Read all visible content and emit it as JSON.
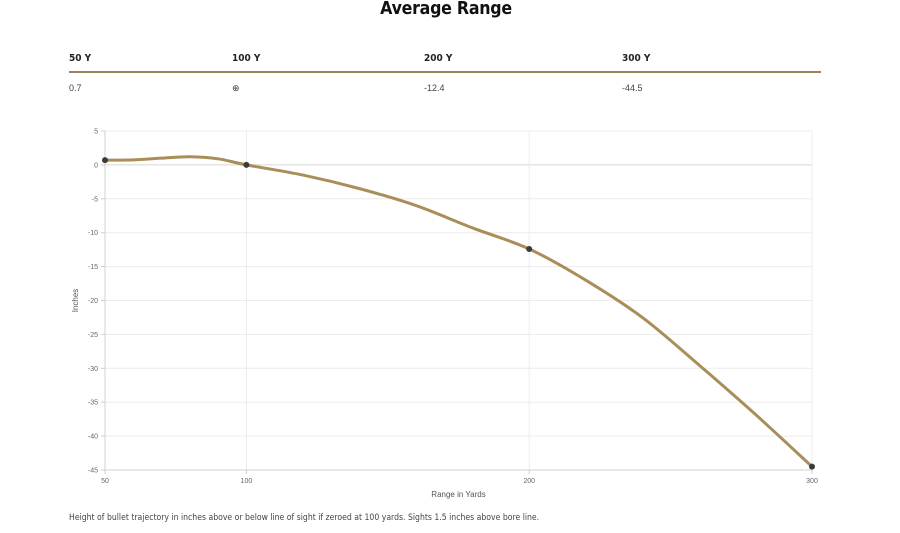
{
  "title": "Average Range",
  "table": {
    "headers": [
      "50 Y",
      "100 Y",
      "200 Y",
      "300 Y"
    ],
    "values": [
      "0.7",
      "⊕",
      "-12.4",
      "-44.5"
    ]
  },
  "caption": "Height of bullet trajectory in inches above or below line of sight if zeroed at 100 yards. Sights 1.5 inches above bore line.",
  "colors": {
    "line": "#a98e5a",
    "point": "#3b3b3b",
    "rule": "#9d8358"
  },
  "chart_data": {
    "type": "line",
    "xlabel": "Range in Yards",
    "ylabel": "Inches",
    "x_ticks": [
      50,
      100,
      200,
      300
    ],
    "y_ticks": [
      5,
      0,
      -5,
      -10,
      -15,
      -20,
      -25,
      -30,
      -35,
      -40,
      -45
    ],
    "xlim": [
      50,
      300
    ],
    "ylim": [
      -45,
      5
    ],
    "grid": true,
    "series": [
      {
        "points": [
          [
            50,
            0.7
          ],
          [
            100,
            0
          ],
          [
            200,
            -12.4
          ],
          [
            300,
            -44.5
          ]
        ],
        "curve": [
          [
            50,
            0.7
          ],
          [
            60,
            0.75
          ],
          [
            70,
            1.0
          ],
          [
            80,
            1.2
          ],
          [
            90,
            0.9
          ],
          [
            100,
            0
          ],
          [
            120,
            -1.5
          ],
          [
            140,
            -3.5
          ],
          [
            160,
            -6
          ],
          [
            180,
            -9.3
          ],
          [
            200,
            -12.4
          ],
          [
            220,
            -17
          ],
          [
            240,
            -22.5
          ],
          [
            260,
            -29.5
          ],
          [
            280,
            -36.8
          ],
          [
            300,
            -44.5
          ]
        ]
      }
    ]
  }
}
